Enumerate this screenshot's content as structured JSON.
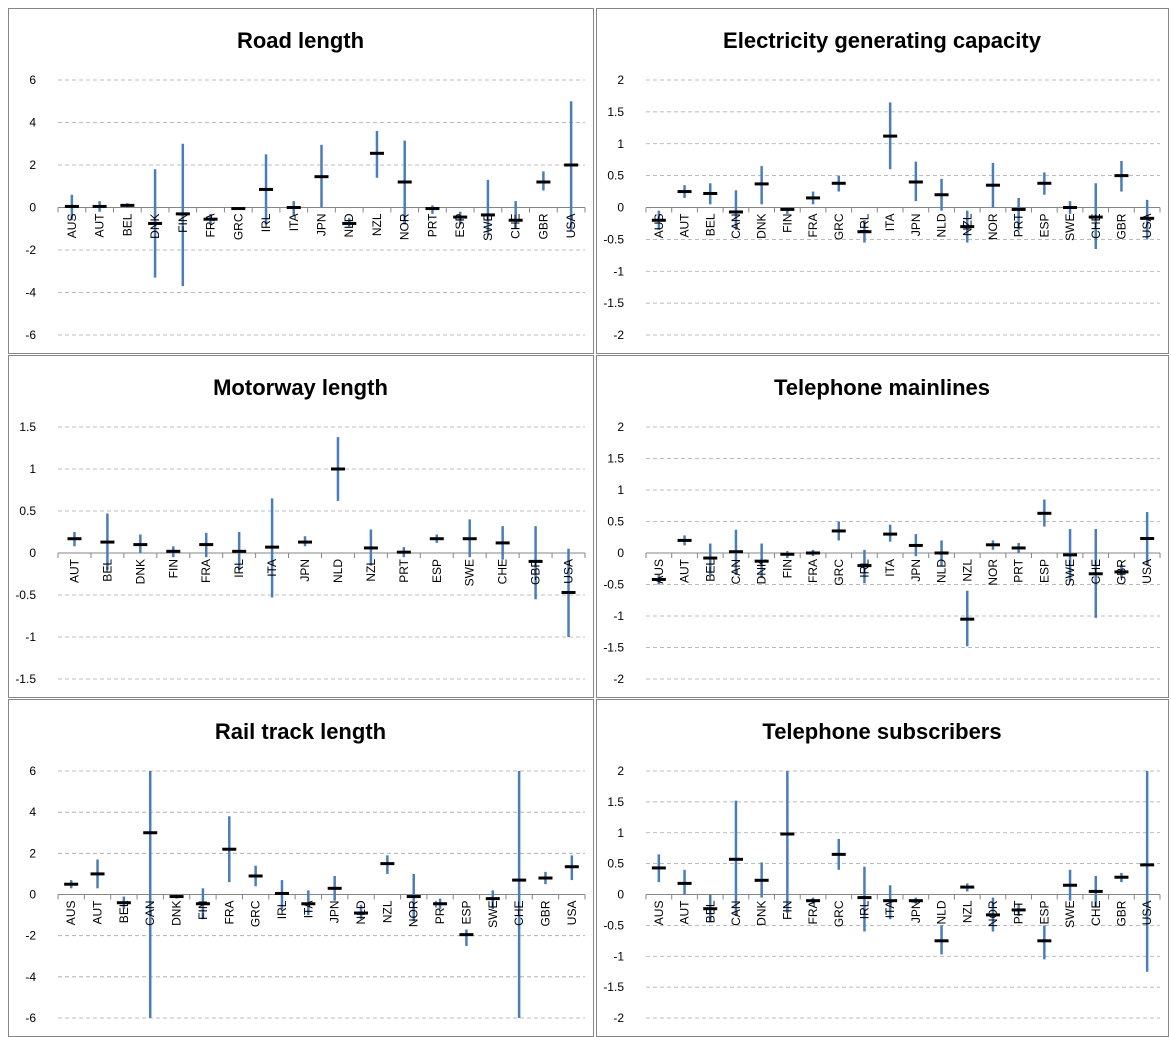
{
  "chart_data": [
    {
      "type": "range",
      "title": "Road length",
      "categories": [
        "AUS",
        "AUT",
        "BEL",
        "DNK",
        "FIN",
        "FRA",
        "GRC",
        "IRL",
        "ITA",
        "JPN",
        "NLD",
        "NZL",
        "NOR",
        "PRT",
        "ESP",
        "SWE",
        "CHE",
        "GBR",
        "USA"
      ],
      "values": [
        0.05,
        0.05,
        0.1,
        -0.75,
        -0.3,
        -0.55,
        -0.05,
        0.85,
        0,
        1.45,
        -0.75,
        2.55,
        1.2,
        -0.05,
        -0.45,
        -0.35,
        -0.6,
        1.2,
        2.0
      ],
      "low": [
        -0.6,
        -0.2,
        0,
        -3.3,
        -3.7,
        -0.8,
        -0.1,
        -0.8,
        -0.4,
        0,
        -0.9,
        1.4,
        -0.8,
        -0.3,
        -0.8,
        -1.3,
        -1.0,
        0.8,
        -1.1
      ],
      "high": [
        0.6,
        0.3,
        0.2,
        1.8,
        3.0,
        -0.3,
        0,
        2.5,
        0.3,
        2.95,
        -0.5,
        3.6,
        3.15,
        0.1,
        -0.2,
        1.3,
        0.3,
        1.7,
        5.0
      ],
      "ylim": [
        -6,
        6
      ],
      "yticks": [
        -6,
        -4,
        -2,
        0,
        2,
        4,
        6
      ],
      "grid": true,
      "color": "#4a7ebb",
      "marker_color": "#000000"
    },
    {
      "type": "range",
      "title": "Electricity generating capacity",
      "categories": [
        "AUS",
        "AUT",
        "BEL",
        "CAN",
        "DNK",
        "FIN",
        "FRA",
        "GRC",
        "IRL",
        "ITA",
        "JPN",
        "NLD",
        "NZL",
        "NOR",
        "PRT",
        "ESP",
        "SWE",
        "CHE",
        "GBR",
        "USA"
      ],
      "values": [
        -0.2,
        0.25,
        0.22,
        -0.07,
        0.37,
        -0.03,
        0.15,
        0.38,
        -0.38,
        1.12,
        0.4,
        0.2,
        -0.3,
        0.35,
        -0.03,
        0.38,
        0,
        -0.15,
        0.5,
        -0.17
      ],
      "low": [
        -0.35,
        0.15,
        0.05,
        -0.35,
        0.05,
        -0.1,
        0.05,
        0.25,
        -0.55,
        0.6,
        0.1,
        -0.05,
        -0.55,
        0,
        -0.35,
        0.2,
        -0.1,
        -0.65,
        0.25,
        -0.5
      ],
      "high": [
        -0.05,
        0.35,
        0.38,
        0.27,
        0.65,
        0,
        0.25,
        0.5,
        -0.2,
        1.65,
        0.72,
        0.45,
        -0.05,
        0.7,
        0.15,
        0.55,
        0.1,
        0.38,
        0.73,
        0.12
      ],
      "ylim": [
        -2,
        2
      ],
      "yticks": [
        -2,
        -1.5,
        -1,
        -0.5,
        0,
        0.5,
        1,
        1.5,
        2
      ],
      "grid": true,
      "color": "#4a7ebb",
      "marker_color": "#000000"
    },
    {
      "type": "range",
      "title": "Motorway length",
      "categories": [
        "AUT",
        "BEL",
        "DNK",
        "FIN",
        "FRA",
        "IRL",
        "ITA",
        "JPN",
        "NLD",
        "NZL",
        "PRT",
        "ESP",
        "SWE",
        "CHE",
        "GBR",
        "USA"
      ],
      "values": [
        0.17,
        0.13,
        0.1,
        0.02,
        0.1,
        0.02,
        0.07,
        0.13,
        1.0,
        0.06,
        0.01,
        0.17,
        0.17,
        0.12,
        -0.1,
        -0.47
      ],
      "low": [
        0.08,
        -0.2,
        0,
        -0.05,
        -0.05,
        -0.2,
        -0.53,
        0.08,
        0.62,
        -0.15,
        -0.05,
        0.12,
        -0.05,
        -0.08,
        -0.55,
        -1.0
      ],
      "high": [
        0.25,
        0.47,
        0.22,
        0.08,
        0.24,
        0.25,
        0.65,
        0.2,
        1.38,
        0.28,
        0.07,
        0.22,
        0.4,
        0.32,
        0.32,
        0.05
      ],
      "ylim": [
        -1.5,
        1.5
      ],
      "yticks": [
        -1.5,
        -1,
        -0.5,
        0,
        0.5,
        1,
        1.5
      ],
      "grid": true,
      "color": "#4a7ebb",
      "marker_color": "#000000"
    },
    {
      "type": "range",
      "title": "Telephone mainlines",
      "categories": [
        "AUS",
        "AUT",
        "BEL",
        "CAN",
        "DNK",
        "FIN",
        "FRA",
        "GRC",
        "IRL",
        "ITA",
        "JPN",
        "NLD",
        "NZL",
        "NOR",
        "PRT",
        "ESP",
        "SWE",
        "CHE",
        "GBR",
        "USA"
      ],
      "values": [
        -0.42,
        0.2,
        -0.08,
        0.02,
        -0.13,
        -0.02,
        0,
        0.35,
        -0.2,
        0.3,
        0.12,
        0,
        -1.05,
        0.13,
        0.08,
        0.63,
        -0.03,
        -0.33,
        -0.3,
        0.23
      ],
      "low": [
        -0.5,
        0.12,
        -0.35,
        -0.35,
        -0.4,
        -0.08,
        -0.05,
        0.2,
        -0.48,
        0.18,
        -0.05,
        -0.2,
        -1.48,
        0.05,
        0,
        0.42,
        -0.45,
        -1.03,
        -0.4,
        -0.2
      ],
      "high": [
        -0.35,
        0.28,
        0.15,
        0.37,
        0.15,
        0.03,
        0.05,
        0.5,
        0.05,
        0.45,
        0.3,
        0.2,
        -0.6,
        0.2,
        0.16,
        0.85,
        0.38,
        0.38,
        -0.18,
        0.65
      ],
      "ylim": [
        -2,
        2
      ],
      "yticks": [
        -2,
        -1.5,
        -1,
        -0.5,
        0,
        0.5,
        1,
        1.5,
        2
      ],
      "grid": true,
      "color": "#4a7ebb",
      "marker_color": "#000000"
    },
    {
      "type": "range",
      "title": "Rail track length",
      "categories": [
        "AUS",
        "AUT",
        "BEL",
        "CAN",
        "DNK",
        "FIN",
        "FRA",
        "GRC",
        "IRL",
        "ITA",
        "JPN",
        "NLD",
        "NZL",
        "NOR",
        "PRT",
        "ESP",
        "SWE",
        "CHE",
        "GBR",
        "USA"
      ],
      "values": [
        0.5,
        1.0,
        -0.4,
        3.0,
        -0.1,
        -0.45,
        2.2,
        0.9,
        0.05,
        -0.45,
        0.3,
        -0.9,
        1.5,
        -0.1,
        -0.45,
        -1.95,
        -0.2,
        0.7,
        0.8,
        1.35
      ],
      "low": [
        0.3,
        0.3,
        -0.7,
        -6,
        -0.2,
        -1.2,
        0.6,
        0.4,
        -0.7,
        -1.0,
        -0.3,
        -1.2,
        1.0,
        -1.3,
        -0.7,
        -2.5,
        -0.7,
        -6,
        0.5,
        0.7
      ],
      "high": [
        0.7,
        1.7,
        -0.1,
        6,
        0,
        0.3,
        3.8,
        1.4,
        0.7,
        0.2,
        0.9,
        -0.5,
        1.9,
        1.0,
        -0.2,
        -1.7,
        0.2,
        6,
        1.1,
        1.9
      ],
      "ylim": [
        -6,
        6
      ],
      "yticks": [
        -6,
        -4,
        -2,
        0,
        2,
        4,
        6
      ],
      "grid": true,
      "color": "#4a7ebb",
      "marker_color": "#000000"
    },
    {
      "type": "range",
      "title": "Telephone subscribers",
      "categories": [
        "AUS",
        "AUT",
        "BEL",
        "CAN",
        "DNK",
        "FIN",
        "FRA",
        "GRC",
        "IRL",
        "ITA",
        "JPN",
        "NLD",
        "NZL",
        "NOR",
        "PRT",
        "ESP",
        "SWE",
        "CHE",
        "GBR",
        "USA"
      ],
      "values": [
        0.43,
        0.18,
        -0.23,
        0.57,
        0.23,
        0.98,
        -0.1,
        0.65,
        -0.05,
        -0.1,
        -0.1,
        -0.75,
        0.12,
        -0.33,
        -0.25,
        -0.75,
        0.15,
        0.05,
        0.28,
        0.48
      ],
      "low": [
        0.2,
        0,
        -0.45,
        -0.35,
        -0.05,
        -0.3,
        -0.15,
        0.4,
        -0.6,
        -0.4,
        -0.15,
        -0.97,
        0.05,
        -0.6,
        -0.35,
        -1.05,
        -0.1,
        -0.2,
        0.2,
        -1.25
      ],
      "high": [
        0.65,
        0.4,
        0,
        1.52,
        0.52,
        2.0,
        -0.05,
        0.9,
        0.45,
        0.15,
        -0.05,
        -0.5,
        0.18,
        -0.05,
        -0.15,
        -0.5,
        0.4,
        0.3,
        0.35,
        2.0
      ],
      "ylim": [
        -2,
        2
      ],
      "yticks": [
        -2,
        -1.5,
        -1,
        -0.5,
        0,
        0.5,
        1,
        1.5,
        2
      ],
      "grid": true,
      "color": "#4a7ebb",
      "marker_color": "#000000"
    }
  ]
}
